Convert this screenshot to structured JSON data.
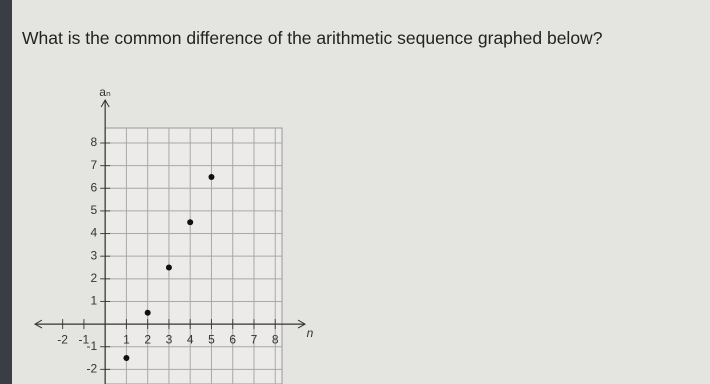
{
  "question": "What is the common difference of the arithmetic sequence graphed below?",
  "chart_data": {
    "type": "scatter",
    "x_label": "n",
    "y_label": "aₙ",
    "x": [
      1,
      2,
      3,
      4,
      5
    ],
    "values": [
      -1.5,
      0.5,
      2.5,
      4.5,
      6.5
    ],
    "color": "#111111",
    "xlim": [
      -3.3,
      9.4
    ],
    "ylim": [
      -3,
      9.9
    ],
    "xticks": [
      -2,
      -1,
      1,
      2,
      3,
      4,
      5,
      6,
      7,
      8
    ],
    "yticks": [
      -2,
      -1,
      1,
      2,
      3,
      4,
      5,
      6,
      7,
      8
    ],
    "grid": true
  }
}
